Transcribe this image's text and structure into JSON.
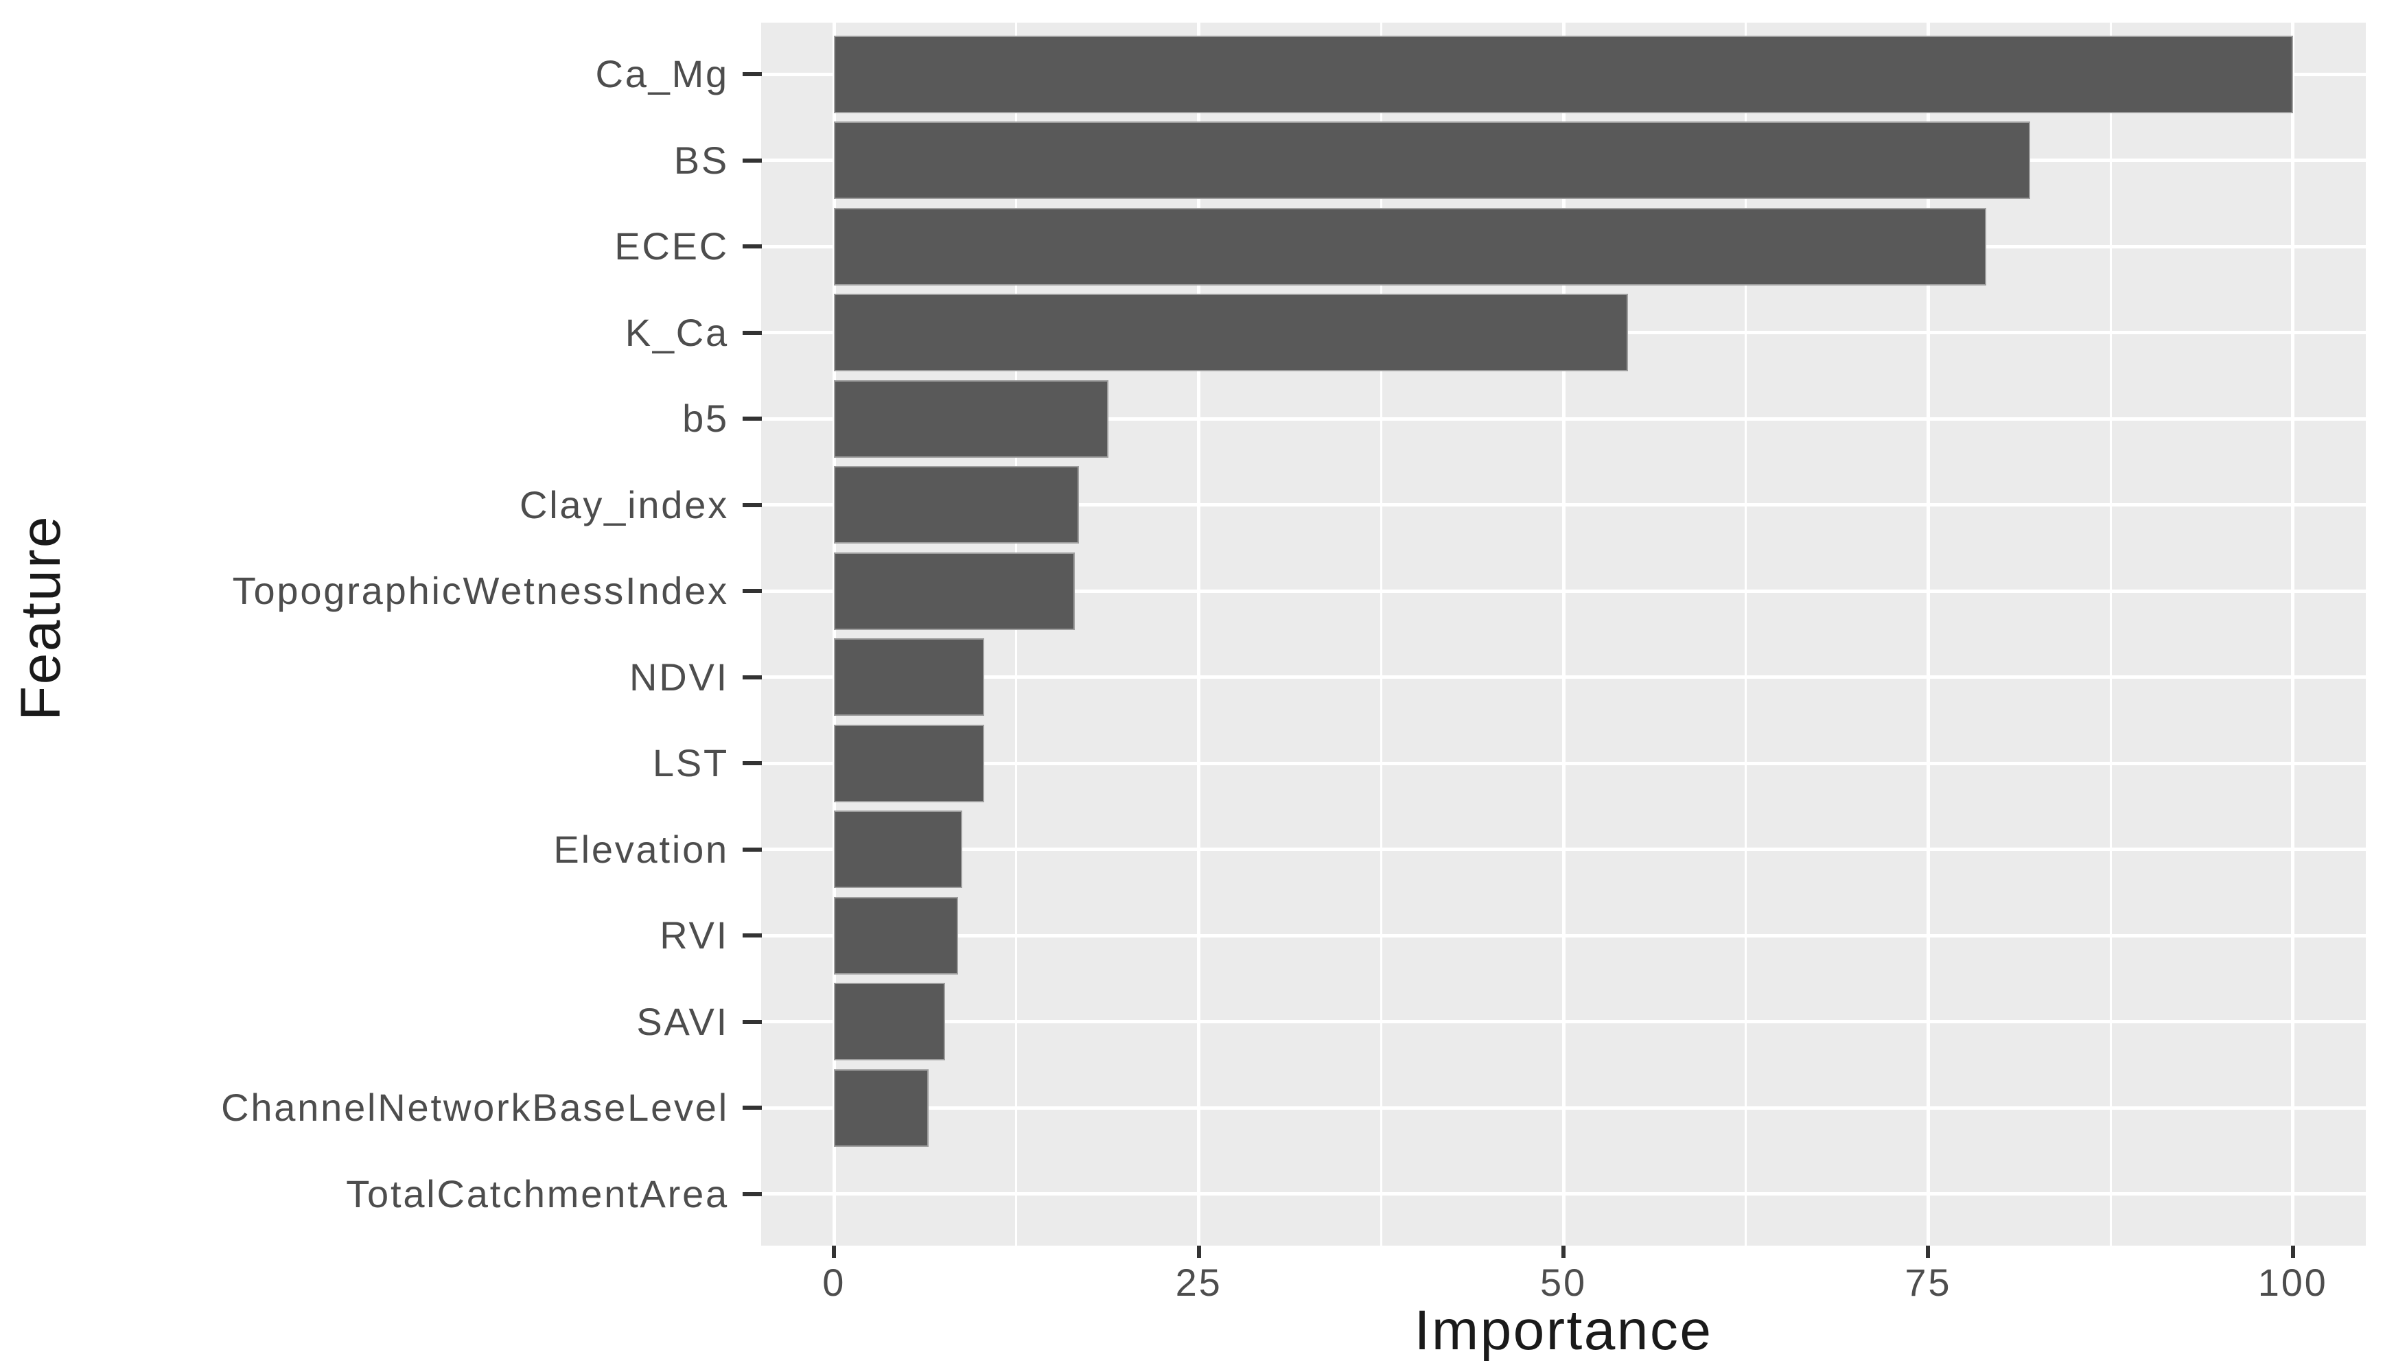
{
  "chart_data": {
    "type": "bar",
    "orientation": "horizontal",
    "title": "",
    "xlabel": "Importance",
    "ylabel": "Feature",
    "categories_top_to_bottom": [
      "Ca_Mg",
      "BS",
      "ECEC",
      "K_Ca",
      "b5",
      "Clay_index",
      "TopographicWetnessIndex",
      "NDVI",
      "LST",
      "Elevation",
      "RVI",
      "SAVI",
      "ChannelNetworkBaseLevel",
      "TotalCatchmentArea"
    ],
    "values": [
      100,
      82,
      79,
      54.4,
      18.8,
      16.8,
      16.5,
      10.3,
      10.3,
      8.8,
      8.5,
      7.6,
      6.5,
      0
    ],
    "x_ticks": [
      0,
      25,
      50,
      75,
      100
    ],
    "x_minor_ticks": [
      12.5,
      37.5,
      62.5,
      87.5
    ],
    "xlim": [
      -5,
      105
    ],
    "y_expansion": [
      0.4,
      14.6
    ],
    "bar_width_fraction": 0.9,
    "grid": true,
    "legend": false,
    "colors": {
      "bar_fill": "#595959",
      "bar_border": "#9e9e9e",
      "panel_bg": "#ebebeb",
      "grid": "#ffffff",
      "tick_mark": "#333333",
      "tick_label": "#4d4d4d",
      "axis_title": "#1a1a1a",
      "page_bg": "#ffffff"
    }
  }
}
